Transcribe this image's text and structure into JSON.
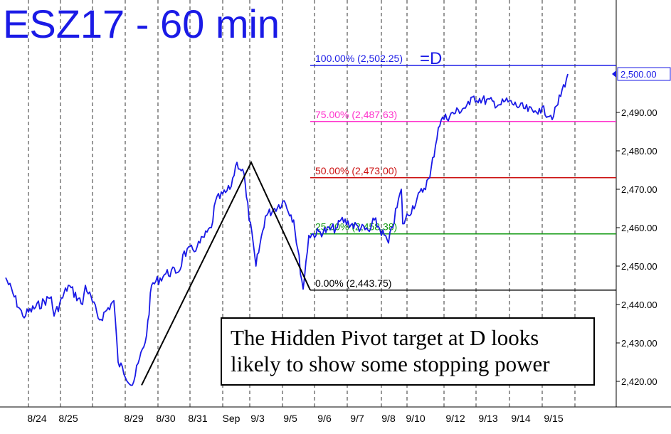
{
  "chart_data": {
    "type": "line",
    "title": "ESZ17 - 60 min",
    "x_tick_labels": [
      "8/24",
      "8/25",
      "8/29",
      "8/30",
      "8/31",
      "Sep",
      "9/3",
      "9/5",
      "9/6",
      "9/7",
      "9/8",
      "9/10",
      "9/12",
      "9/13",
      "9/14",
      "9/15"
    ],
    "y_ticks": [
      "2,420.00",
      "2,430.00",
      "2,440.00",
      "2,450.00",
      "2,460.00",
      "2,470.00",
      "2,480.00",
      "2,490.00"
    ],
    "ylim": [
      2413,
      2508
    ],
    "last_price": {
      "label": "2,500.00",
      "value": 2500.0
    },
    "grid": "vertical dashed",
    "fib_levels": [
      {
        "label": "100.00% (2,502.25)",
        "suffix": "=D",
        "value": 2502.25,
        "color": "#1a1ae6"
      },
      {
        "label": "75.00% (2,487.63)",
        "value": 2487.63,
        "color": "#ff33cc"
      },
      {
        "label": "50.00% (2,473.00)",
        "value": 2473.0,
        "color": "#cc1111"
      },
      {
        "label": "25.00% (2,458.38)",
        "value": 2458.38,
        "color": "#119911"
      },
      {
        "label": "0.00% (2,443.75)",
        "value": 2443.75,
        "color": "#000000"
      }
    ],
    "abc_pattern": [
      {
        "session": "8/29",
        "value": 2419.0
      },
      {
        "session": "9/3",
        "value": 2477.0
      },
      {
        "session": "9/5",
        "value": 2443.75
      }
    ],
    "series": [
      {
        "color": "#1a1ae6",
        "points": [
          {
            "session": "8/23",
            "value": 2447
          },
          {
            "session": "8/24",
            "value": 2437
          },
          {
            "session": "8/24",
            "value": 2442
          },
          {
            "session": "8/25",
            "value": 2437
          },
          {
            "session": "8/25",
            "value": 2445
          },
          {
            "session": "8/25",
            "value": 2440
          },
          {
            "session": "8/28",
            "value": 2445
          },
          {
            "session": "8/28",
            "value": 2436
          },
          {
            "session": "8/28",
            "value": 2441
          },
          {
            "session": "8/29",
            "value": 2425
          },
          {
            "session": "8/29",
            "value": 2419
          },
          {
            "session": "8/29",
            "value": 2432
          },
          {
            "session": "8/30",
            "value": 2445
          },
          {
            "session": "8/30",
            "value": 2448
          },
          {
            "session": "8/30",
            "value": 2449
          },
          {
            "session": "8/31",
            "value": 2453
          },
          {
            "session": "8/31",
            "value": 2455
          },
          {
            "session": "8/31",
            "value": 2460
          },
          {
            "session": "Sep",
            "value": 2467
          },
          {
            "session": "Sep",
            "value": 2470
          },
          {
            "session": "Sep",
            "value": 2474
          },
          {
            "session": "9/3",
            "value": 2477
          },
          {
            "session": "9/3",
            "value": 2468
          },
          {
            "session": "9/3",
            "value": 2450
          },
          {
            "session": "9/3",
            "value": 2463
          },
          {
            "session": "9/5",
            "value": 2465
          },
          {
            "session": "9/5",
            "value": 2467
          },
          {
            "session": "9/5",
            "value": 2462
          },
          {
            "session": "9/5",
            "value": 2444
          },
          {
            "session": "9/6",
            "value": 2458
          },
          {
            "session": "9/6",
            "value": 2460
          },
          {
            "session": "9/7",
            "value": 2462
          },
          {
            "session": "9/7",
            "value": 2459
          },
          {
            "session": "9/8",
            "value": 2462
          },
          {
            "session": "9/8",
            "value": 2456
          },
          {
            "session": "9/8",
            "value": 2461
          },
          {
            "session": "9/10",
            "value": 2470
          },
          {
            "session": "9/10",
            "value": 2473
          },
          {
            "session": "9/11",
            "value": 2486
          },
          {
            "session": "9/12",
            "value": 2488
          },
          {
            "session": "9/12",
            "value": 2492
          },
          {
            "session": "9/13",
            "value": 2494
          },
          {
            "session": "9/13",
            "value": 2492
          },
          {
            "session": "9/14",
            "value": 2493
          },
          {
            "session": "9/14",
            "value": 2490
          },
          {
            "session": "9/15",
            "value": 2491
          },
          {
            "session": "9/15",
            "value": 2489
          },
          {
            "session": "9/15",
            "value": 2500
          }
        ]
      }
    ]
  },
  "annotation": {
    "line1": "The Hidden Pivot target at D looks",
    "line2": "likely to show some stopping power"
  }
}
